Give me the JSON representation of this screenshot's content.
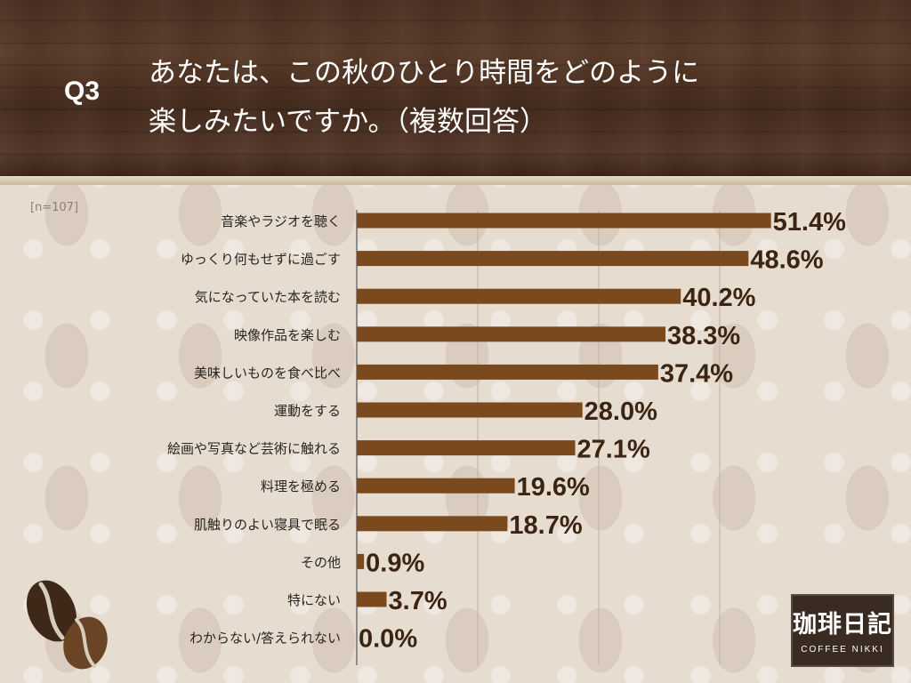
{
  "header": {
    "q_label": "Q3",
    "title": "あなたは、この秋のひとり時間をどのように\n楽しみたいですか。（複数回答）"
  },
  "sample_label": "[n=107]",
  "logo": {
    "kanji": "珈琲日記",
    "sub": "COFFEE NIKKI"
  },
  "colors": {
    "bar": "#7a4a1e",
    "value_text": "#3b2412",
    "label_text": "#2a2522",
    "header_bg": "#4a3021"
  },
  "chart_data": {
    "type": "bar",
    "orientation": "horizontal",
    "categories": [
      "音楽やラジオを聴く",
      "ゆっくり何もせずに過ごす",
      "気になっていた本を読む",
      "映像作品を楽しむ",
      "美味しいものを食べ比べ",
      "運動をする",
      "絵画や写真など芸術に触れる",
      "料理を極める",
      "肌触りのよい寝具で眠る",
      "その他",
      "特にない",
      "わからない/答えられない"
    ],
    "values": [
      51.4,
      48.6,
      40.2,
      38.3,
      37.4,
      28.0,
      27.1,
      19.6,
      18.7,
      0.9,
      3.7,
      0.0
    ],
    "value_labels": [
      "51.4%",
      "48.6%",
      "40.2%",
      "38.3%",
      "37.4%",
      "28.0%",
      "27.1%",
      "19.6%",
      "18.7%",
      "0.9%",
      "3.7%",
      "0.0%"
    ],
    "xlim": [
      0,
      60
    ],
    "grid": true
  }
}
